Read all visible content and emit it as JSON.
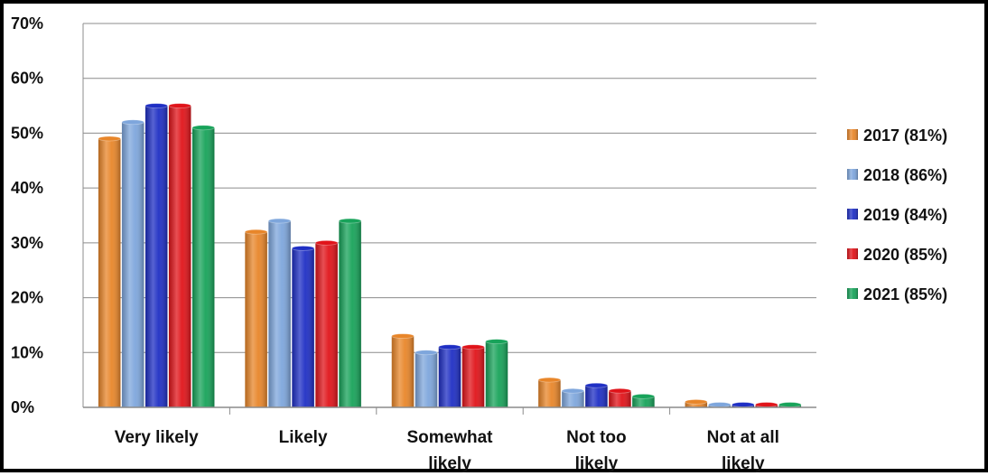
{
  "chart_data": {
    "type": "bar",
    "title": "",
    "xlabel": "",
    "ylabel": "",
    "ylim": [
      0,
      70
    ],
    "yticks": [
      "0%",
      "10%",
      "20%",
      "30%",
      "40%",
      "50%",
      "60%",
      "70%"
    ],
    "categories": [
      [
        "Very likely"
      ],
      [
        "Likely"
      ],
      [
        "Somewhat",
        "likely"
      ],
      [
        "Not too",
        "likely"
      ],
      [
        "Not at all",
        "likely"
      ]
    ],
    "series": [
      {
        "name": "2017 (81%)",
        "color": "#e8862a",
        "values": [
          49,
          32,
          13,
          5,
          1
        ]
      },
      {
        "name": "2018 (86%)",
        "color": "#7ea6dc",
        "values": [
          52,
          34,
          10,
          3,
          0.5
        ]
      },
      {
        "name": "2019 (84%)",
        "color": "#1f2fc4",
        "values": [
          55,
          29,
          11,
          4,
          0.5
        ]
      },
      {
        "name": "2020 (85%)",
        "color": "#e0141a",
        "values": [
          55,
          30,
          11,
          3,
          0.5
        ]
      },
      {
        "name": "2021 (85%)",
        "color": "#18a35a",
        "values": [
          51,
          34,
          12,
          2,
          0.5
        ]
      }
    ],
    "grid": true,
    "legend": "right"
  }
}
